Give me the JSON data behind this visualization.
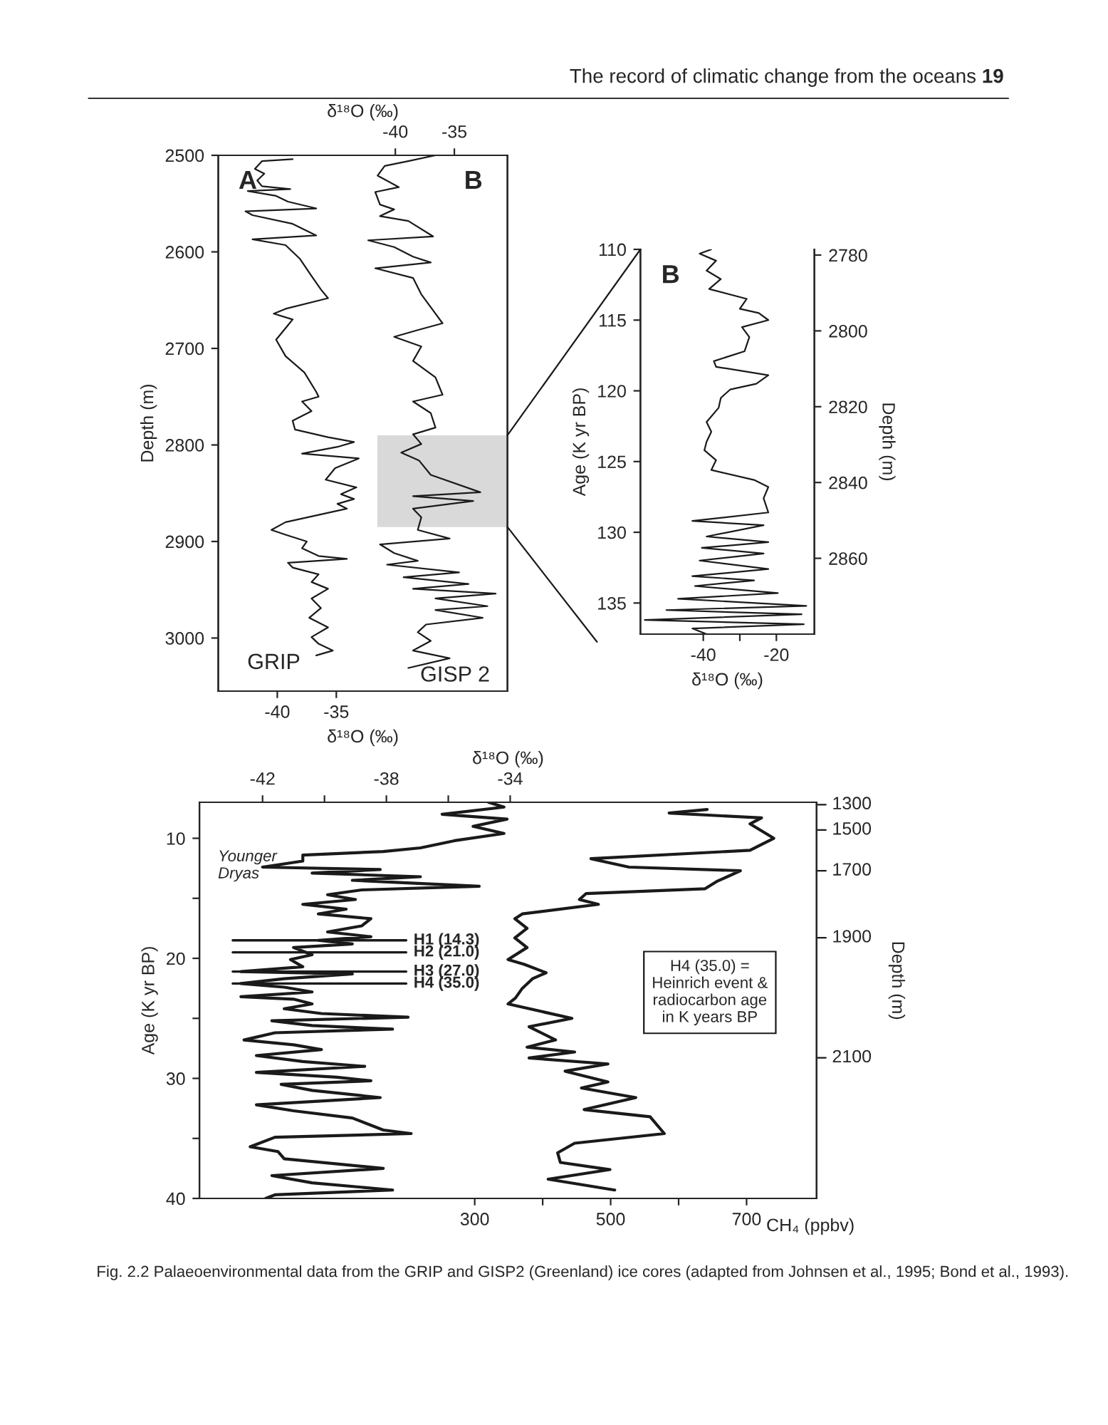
{
  "chart_data": [
    {
      "type": "line",
      "orientation": "horizontal",
      "xlabel": "δ¹⁸O (‰)",
      "x2label": "δ¹⁸O (‰)",
      "ylabel": "Depth (m)",
      "ylim": [
        3055,
        2500
      ],
      "yticks": [
        2500,
        2600,
        2700,
        2800,
        2900,
        3000
      ],
      "xlim": [
        -45,
        -20.5
      ],
      "xticks": [
        -40,
        -35
      ],
      "x2lim": [
        -55,
        -30.5
      ],
      "x2ticks": [
        -40,
        -35
      ],
      "annotations": [
        "The record of climatic change from the oceans",
        "19",
        "A",
        "B"
      ],
      "bands": [
        {
          "axis": "y",
          "from": 2790,
          "to": 2885,
          "color": "#d9d9d9"
        }
      ],
      "series": [
        {
          "name": "GRIP",
          "color": "#1a1a1a",
          "x": [
            2504,
            2506,
            2514,
            2519,
            2526,
            2532,
            2535,
            2537,
            2542,
            2548,
            2555,
            2558,
            2562,
            2571,
            2583,
            2587,
            2593,
            2600,
            2607,
            2625,
            2639,
            2648,
            2659,
            2664,
            2670,
            2676,
            2691,
            2708,
            2725,
            2745,
            2750,
            2755,
            2765,
            2775,
            2784,
            2792,
            2797,
            2802,
            2809,
            2814,
            2824,
            2836,
            2844,
            2851,
            2856,
            2861,
            2866,
            2873,
            2880,
            2888,
            2893,
            2900,
            2907,
            2915,
            2918,
            2922,
            2927,
            2934,
            2942,
            2949,
            2959,
            2969,
            2979,
            2989,
            2999,
            3006,
            3013,
            3018
          ],
          "values": [
            -38.7,
            -41.3,
            -41.9,
            -41.1,
            -41.7,
            -41.3,
            -38.9,
            -42.5,
            -40.1,
            -39.1,
            -36.7,
            -42.7,
            -42.1,
            -38.7,
            -36.7,
            -42.1,
            -39.3,
            -38.7,
            -38.1,
            -37.1,
            -36.3,
            -35.7,
            -39.3,
            -40.3,
            -38.7,
            -39.1,
            -40.1,
            -39.3,
            -37.7,
            -36.7,
            -36.5,
            -37.9,
            -37.1,
            -38.7,
            -38.5,
            -35.7,
            -33.5,
            -34.9,
            -37.9,
            -33.1,
            -35.1,
            -35.9,
            -33.3,
            -34.6,
            -33.5,
            -34.9,
            -34.1,
            -36.7,
            -39.3,
            -40.5,
            -39.3,
            -37.5,
            -37.9,
            -36.5,
            -34.1,
            -39.1,
            -38.7,
            -36.5,
            -37.1,
            -35.7,
            -37.1,
            -36.3,
            -37.3,
            -35.7,
            -37.1,
            -36.5,
            -35.3,
            -36.7
          ]
        },
        {
          "name": "GISP 2",
          "color": "#1a1a1a",
          "axis": "x2",
          "x": [
            2500,
            2506,
            2511,
            2521,
            2533,
            2538,
            2551,
            2556,
            2563,
            2568,
            2584,
            2588,
            2595,
            2605,
            2611,
            2617,
            2627,
            2644,
            2664,
            2674,
            2681,
            2688,
            2698,
            2713,
            2730,
            2748,
            2755,
            2767,
            2782,
            2789,
            2799,
            2808,
            2816,
            2831,
            2849,
            2853,
            2858,
            2866,
            2875,
            2888,
            2897,
            2903,
            2912,
            2920,
            2924,
            2932,
            2937,
            2944,
            2949,
            2954,
            2959,
            2967,
            2971,
            2979,
            2986,
            2994,
            3003,
            3013,
            3021,
            3031
          ],
          "values": [
            -36.6,
            -38.9,
            -40.9,
            -41.5,
            -39.7,
            -41.7,
            -41.3,
            -40.1,
            -41.3,
            -38.9,
            -36.8,
            -42.3,
            -40.1,
            -38.5,
            -37.0,
            -41.7,
            -38.5,
            -37.8,
            -36.6,
            -36.0,
            -38.1,
            -40.1,
            -37.8,
            -38.5,
            -36.6,
            -36.0,
            -38.5,
            -37.0,
            -36.6,
            -38.5,
            -37.8,
            -39.5,
            -38.0,
            -37.0,
            -32.8,
            -38.5,
            -33.4,
            -38.5,
            -37.8,
            -38.1,
            -35.4,
            -41.3,
            -40.1,
            -38.1,
            -40.7,
            -34.6,
            -39.3,
            -33.8,
            -38.5,
            -31.5,
            -36.6,
            -32.2,
            -36.6,
            -32.6,
            -37.4,
            -38.1,
            -37.0,
            -38.5,
            -35.4,
            -38.9
          ]
        }
      ]
    },
    {
      "type": "line",
      "orientation": "horizontal",
      "xlabel": "δ¹⁸O (‰)",
      "ylabel": "Age (K yr BP)",
      "y2label": "Depth (m)",
      "ylim": [
        137.2,
        110
      ],
      "yticks": [
        110,
        115,
        120,
        125,
        130,
        135
      ],
      "xlim": [
        -57.2,
        -9.6
      ],
      "xticks": [
        -40,
        {
          "value": -30,
          "label": null
        },
        -20
      ],
      "y2lim": [
        2880,
        2778.5
      ],
      "y2ticks": [
        2780,
        2800,
        2820,
        2840,
        2860
      ],
      "annotations": [
        "B"
      ],
      "series": [
        {
          "color": "#1a1a1a",
          "x": [
            110.0,
            110.3,
            110.8,
            111.5,
            112.1,
            112.8,
            113.5,
            114.2,
            114.5,
            115.0,
            115.5,
            116.2,
            117.2,
            117.9,
            118.3,
            118.9,
            119.5,
            119.9,
            120.5,
            121.2,
            122.2,
            122.9,
            123.6,
            124.2,
            124.9,
            125.6,
            126.3,
            126.8,
            127.6,
            128.6,
            129.2,
            129.5,
            130.3,
            130.7,
            131.1,
            131.5,
            132.0,
            132.6,
            133.1,
            133.4,
            133.8,
            134.3,
            134.7,
            135.2,
            135.5,
            135.8,
            136.2,
            136.5,
            136.8,
            137.2
          ],
          "values": [
            -37.8,
            -41.0,
            -36.5,
            -39.1,
            -35.2,
            -38.4,
            -28.1,
            -30.0,
            -24.8,
            -22.2,
            -29.4,
            -27.4,
            -28.7,
            -37.1,
            -36.5,
            -22.2,
            -25.5,
            -32.6,
            -35.2,
            -35.8,
            -39.1,
            -37.8,
            -39.1,
            -39.7,
            -36.5,
            -37.8,
            -26.1,
            -22.2,
            -23.5,
            -22.2,
            -43.0,
            -23.5,
            -39.1,
            -22.2,
            -40.4,
            -23.5,
            -41.0,
            -22.2,
            -43.0,
            -26.1,
            -42.3,
            -19.6,
            -46.9,
            -11.8,
            -50.1,
            -13.1,
            -56.0,
            -12.5,
            -43.0,
            -39.1
          ]
        }
      ]
    },
    {
      "type": "line",
      "orientation": "horizontal",
      "xlabel": "CH₄ (ppbv)",
      "x2label": "δ¹⁸O (‰)",
      "ylabel": "Age (K yr BP)",
      "ylim": [
        40,
        7
      ],
      "yticks": [
        10,
        {
          "value": 15,
          "label": null
        },
        20,
        {
          "value": 25,
          "label": null
        },
        30,
        {
          "value": 35,
          "label": null
        },
        40
      ],
      "xlim": [
        -105,
        803
      ],
      "xticks": [
        300,
        {
          "value": 400,
          "label": null
        },
        500,
        {
          "value": 600,
          "label": null
        },
        700
      ],
      "x2lim": [
        -44.04,
        -24.1
      ],
      "x2ticks": [
        -42,
        {
          "value": -40,
          "label": null
        },
        -38,
        {
          "value": -36,
          "label": null
        },
        -34
      ],
      "ref_lines": [
        {
          "axis": "y",
          "value": 18.5,
          "label": "H1 (14.3)"
        },
        {
          "axis": "y",
          "value": 19.5,
          "label": "H2 (21.0)"
        },
        {
          "axis": "y",
          "value": 21.1,
          "label": "H3 (27.0)"
        },
        {
          "axis": "y",
          "value": 22.1,
          "label": "H4 (35.0)"
        }
      ],
      "annotations": [
        "H4 (35.0) =\nHeinrich event &\nradiocarbon age\nin K years BP",
        "Fig. 2.2 Palaeoenvironmental data from the GRIP and GISP2 (Greenland) ice cores (adapted from Johnsen et al., 1995; Bond et al., 1993).",
        "Younger\nDryas",
        "1300",
        "1500",
        "1700",
        "1900",
        "2100",
        "Depth (m)"
      ],
      "series": [
        {
          "color": "#1a1a1a",
          "axis": "x2",
          "x": [
            7.0,
            7.4,
            8.0,
            8.4,
            9.0,
            9.6,
            10.2,
            10.8,
            11.1,
            11.4,
            11.9,
            12.4,
            12.6,
            12.9,
            13.2,
            13.5,
            14.0,
            14.3,
            14.7,
            15.1,
            15.5,
            15.9,
            16.3,
            16.7,
            17.3,
            17.8,
            18.2,
            18.5,
            18.8,
            19.1,
            19.7,
            20.1,
            20.7,
            21.1,
            21.3,
            21.7,
            22.1,
            22.4,
            22.8,
            23.2,
            23.4,
            23.8,
            24.2,
            24.6,
            24.9,
            25.2,
            25.6,
            25.9,
            26.2,
            26.8,
            27.2,
            27.6,
            28.1,
            28.6,
            29.0,
            29.5,
            29.9,
            30.2,
            30.5,
            31.0,
            31.6,
            32.2,
            32.7,
            33.3,
            34.3,
            34.6,
            34.9,
            35.7,
            36.1,
            36.7,
            37.5,
            38.1,
            38.7,
            39.3,
            39.7,
            40.0
          ],
          "values": [
            -34.7,
            -34.2,
            -36.2,
            -34.1,
            -35.2,
            -34.2,
            -35.8,
            -36.9,
            -38.1,
            -40.7,
            -40.7,
            -42.0,
            -38.2,
            -40.4,
            -36.9,
            -39.1,
            -35.0,
            -38.8,
            -39.9,
            -39.0,
            -40.7,
            -39.3,
            -40.2,
            -38.5,
            -38.8,
            -39.9,
            -38.5,
            -40.2,
            -39.1,
            -41.0,
            -40.4,
            -41.1,
            -40.7,
            -42.7,
            -39.1,
            -41.3,
            -42.7,
            -41.3,
            -40.4,
            -42.7,
            -41.0,
            -40.4,
            -41.3,
            -40.1,
            -37.3,
            -41.7,
            -40.4,
            -37.8,
            -41.6,
            -42.6,
            -41.0,
            -40.1,
            -42.2,
            -40.7,
            -38.7,
            -42.2,
            -39.6,
            -38.5,
            -41.4,
            -40.4,
            -38.2,
            -42.2,
            -41.0,
            -39.1,
            -38.1,
            -37.2,
            -41.6,
            -42.4,
            -41.5,
            -41.3,
            -38.1,
            -41.7,
            -40.4,
            -37.8,
            -41.6,
            -41.9
          ]
        },
        {
          "color": "#1a1a1a",
          "x": [
            7.6,
            7.9,
            8.3,
            8.8,
            10.0,
            11.0,
            11.7,
            12.4,
            12.7,
            13.6,
            14.2,
            14.6,
            15.1,
            15.5,
            16.3,
            16.7,
            17.5,
            18.3,
            19.1,
            20.1,
            20.5,
            21.2,
            21.7,
            22.5,
            23.3,
            23.8,
            25.0,
            25.7,
            26.8,
            27.4,
            27.8,
            28.3,
            28.8,
            29.4,
            30.3,
            30.8,
            31.6,
            32.6,
            33.2,
            34.6,
            35.4,
            36.2,
            37.0,
            37.6,
            38.4,
            39.3
          ],
          "values": [
            642,
            586,
            722,
            705,
            740,
            705,
            471,
            527,
            691,
            656,
            639,
            464,
            454,
            482,
            370,
            359,
            377,
            359,
            377,
            349,
            373,
            405,
            385,
            370,
            360,
            349,
            443,
            380,
            419,
            377,
            447,
            380,
            496,
            433,
            496,
            457,
            537,
            461,
            558,
            579,
            447,
            422,
            426,
            499,
            408,
            506
          ]
        }
      ]
    }
  ]
}
